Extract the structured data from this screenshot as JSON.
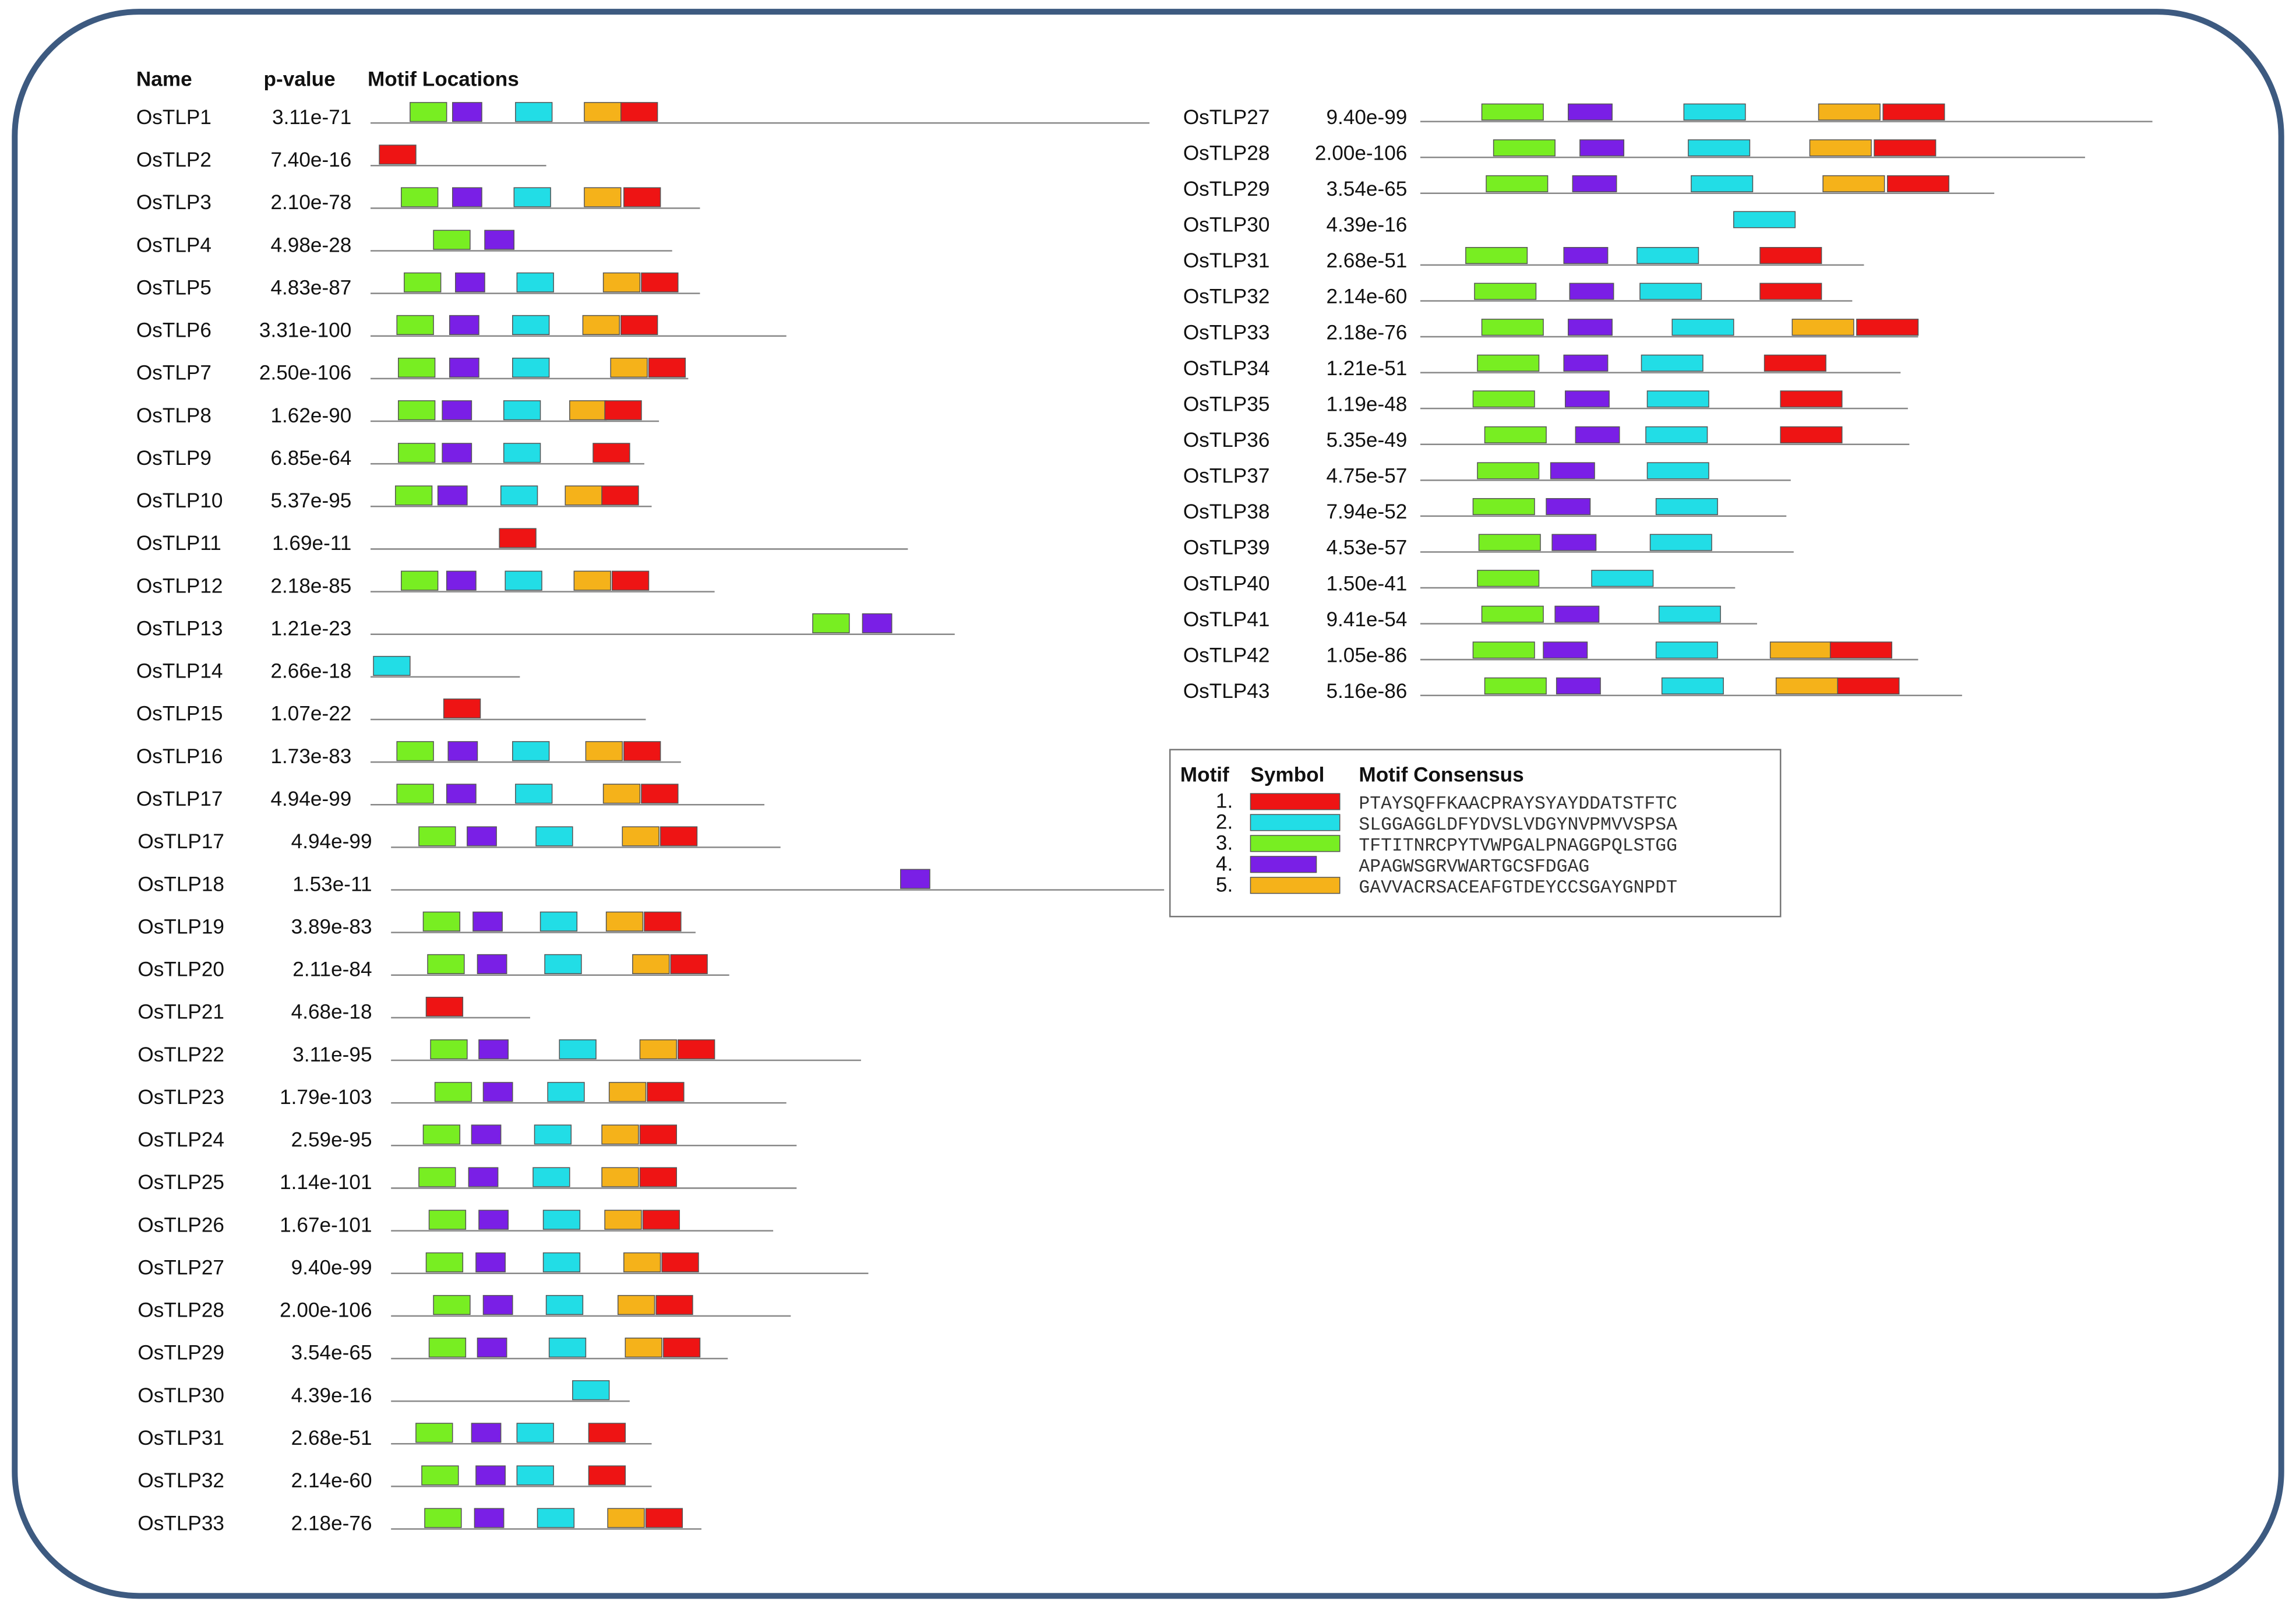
{
  "columns": [
    "Name",
    "p-value",
    "Motif Locations"
  ],
  "rows": [
    {
      "name": "OsTLP1",
      "p_value": "3.11e-71"
    },
    {
      "name": "OsTLP2",
      "p_value": "7.40e-16"
    },
    {
      "name": "OsTLP3",
      "p_value": "2.10e-78"
    },
    {
      "name": "OsTLP4",
      "p_value": "4.98e-28"
    },
    {
      "name": "OsTLP5",
      "p_value": "4.83e-87"
    },
    {
      "name": "OsTLP6",
      "p_value": "3.31e-100"
    },
    {
      "name": "OsTLP7",
      "p_value": "2.50e-106"
    },
    {
      "name": "OsTLP8",
      "p_value": "1.62e-90"
    },
    {
      "name": "OsTLP9",
      "p_value": "6.85e-64"
    },
    {
      "name": "OsTLP10",
      "p_value": "5.37e-95"
    },
    {
      "name": "OsTLP11",
      "p_value": "1.69e-11"
    },
    {
      "name": "OsTLP12",
      "p_value": "2.18e-85"
    },
    {
      "name": "OsTLP13",
      "p_value": "1.21e-23"
    },
    {
      "name": "OsTLP14",
      "p_value": "2.66e-18"
    },
    {
      "name": "OsTLP15",
      "p_value": "1.07e-22"
    },
    {
      "name": "OsTLP16",
      "p_value": "1.73e-83"
    },
    {
      "name": "OsTLP17",
      "p_value": "4.94e-99"
    },
    {
      "name": "OsTLP17",
      "p_value": "4.94e-99"
    },
    {
      "name": "OsTLP18",
      "p_value": "1.53e-11"
    },
    {
      "name": "OsTLP19",
      "p_value": "3.89e-83"
    },
    {
      "name": "OsTLP20",
      "p_value": "2.11e-84"
    },
    {
      "name": "OsTLP21",
      "p_value": "4.68e-18"
    },
    {
      "name": "OsTLP22",
      "p_value": "3.11e-95"
    },
    {
      "name": "OsTLP23",
      "p_value": "1.79e-103"
    },
    {
      "name": "OsTLP24",
      "p_value": "2.59e-95"
    },
    {
      "name": "OsTLP25",
      "p_value": "1.14e-101"
    },
    {
      "name": "OsTLP26",
      "p_value": "1.67e-101"
    },
    {
      "name": "OsTLP27",
      "p_value": "9.40e-99"
    },
    {
      "name": "OsTLP28",
      "p_value": "2.00e-106"
    },
    {
      "name": "OsTLP29",
      "p_value": "3.54e-65"
    },
    {
      "name": "OsTLP30",
      "p_value": "4.39e-16"
    },
    {
      "name": "OsTLP31",
      "p_value": "2.68e-51"
    },
    {
      "name": "OsTLP32",
      "p_value": "2.14e-60"
    },
    {
      "name": "OsTLP33",
      "p_value": "2.18e-76"
    }
  ],
  "right_rows": [
    {
      "name": "OsTLP27",
      "p_value": "9.40e-99"
    },
    {
      "name": "OsTLP28",
      "p_value": "2.00e-106"
    },
    {
      "name": "OsTLP29",
      "p_value": "3.54e-65"
    },
    {
      "name": "OsTLP30",
      "p_value": "4.39e-16"
    },
    {
      "name": "OsTLP31",
      "p_value": "2.68e-51"
    },
    {
      "name": "OsTLP32",
      "p_value": "2.14e-60"
    },
    {
      "name": "OsTLP33",
      "p_value": "2.18e-76"
    },
    {
      "name": "OsTLP34",
      "p_value": "1.21e-51"
    },
    {
      "name": "OsTLP35",
      "p_value": "1.19e-48"
    },
    {
      "name": "OsTLP36",
      "p_value": "5.35e-49"
    },
    {
      "name": "OsTLP37",
      "p_value": "4.75e-57"
    },
    {
      "name": "OsTLP38",
      "p_value": "7.94e-52"
    },
    {
      "name": "OsTLP39",
      "p_value": "4.53e-57"
    },
    {
      "name": "OsTLP40",
      "p_value": "1.50e-41"
    },
    {
      "name": "OsTLP41",
      "p_value": "9.41e-54"
    },
    {
      "name": "OsTLP42",
      "p_value": "1.05e-86"
    },
    {
      "name": "OsTLP43",
      "p_value": "5.16e-86"
    }
  ],
  "legend": {
    "headers": [
      "Motif",
      "Symbol",
      "Motif Consensus"
    ],
    "rows": [
      {
        "number": "1.",
        "consensus": "PTAYSQFFKAACPRAYSYAYDDATSTFTC"
      },
      {
        "number": "2.",
        "consensus": "SLGGAGGLDFYDVSLVDGYNVPMVVSPSA"
      },
      {
        "number": "3.",
        "consensus": "TFTITNRCPYTVWPGALPNAGGPQLSTGG"
      },
      {
        "number": "4.",
        "consensus": "APAGWSGRVWARTGCSFDGAG"
      },
      {
        "number": "5.",
        "consensus": "GAVVACRSACEAFGTDEYCCSGAYGNPDT"
      }
    ]
  }
}
